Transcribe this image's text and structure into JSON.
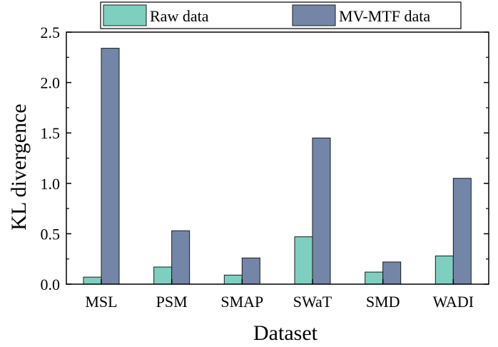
{
  "chart_data": {
    "type": "bar",
    "xlabel": "Dataset",
    "ylabel": "KL divergence",
    "categories": [
      "MSL",
      "PSM",
      "SMAP",
      "SWaT",
      "SMD",
      "WADI"
    ],
    "series": [
      {
        "name": "Raw data",
        "color": "#7ecfc0",
        "values": [
          0.07,
          0.17,
          0.09,
          0.47,
          0.12,
          0.28
        ]
      },
      {
        "name": "MV-MTF data",
        "color": "#7486a8",
        "values": [
          2.34,
          0.53,
          0.26,
          1.45,
          0.22,
          1.05
        ]
      }
    ],
    "ylim": [
      0,
      2.5
    ],
    "yticks": [
      "0.0",
      "0.5",
      "1.0",
      "1.5",
      "2.0",
      "2.5"
    ],
    "grid": false,
    "legend_position": "top"
  }
}
